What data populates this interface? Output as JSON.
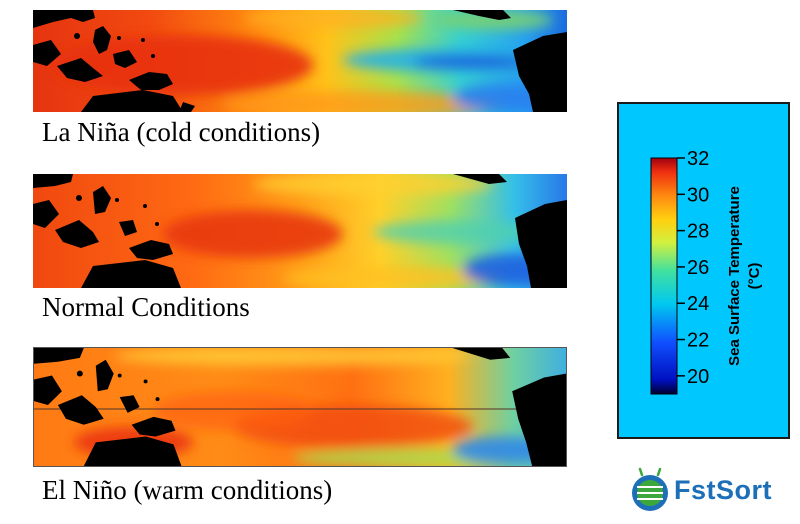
{
  "panels": [
    {
      "caption": "La Niña (cold conditions)"
    },
    {
      "caption": "Normal Conditions"
    },
    {
      "caption": "El Niño (warm conditions)"
    }
  ],
  "legend": {
    "title_line1": "Sea Surface Temperature",
    "title_line2": "(°C)",
    "ticks": [
      "32",
      "30",
      "28",
      "26",
      "24",
      "22",
      "20"
    ],
    "range": [
      19,
      32
    ]
  },
  "logo": {
    "text": "FstSort",
    "icon": "satellite-globe-icon",
    "color": "#1d6fb8"
  },
  "colors": {
    "legend_background": "#00c8ff",
    "land": "#000000"
  }
}
